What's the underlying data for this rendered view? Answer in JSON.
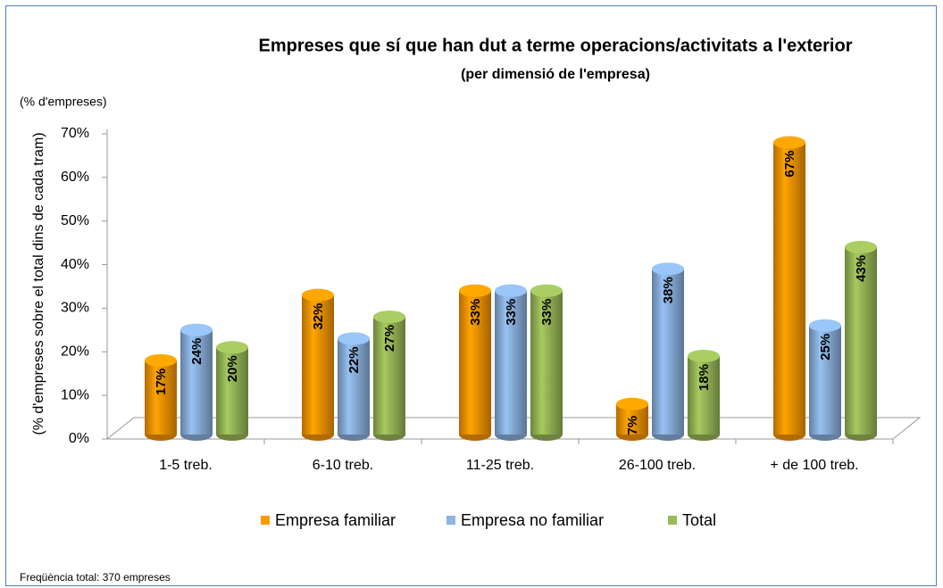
{
  "chart_data": {
    "type": "bar",
    "title": "Empreses que sí que han dut a terme operacions/activitats a l'exterior",
    "subtitle": "(per dimensió de l'empresa)",
    "unit_label": "(% d'empreses)",
    "y_label": "(% d'empreses sobre el total dins de cada tram)",
    "footnote": "Freqüència total: 370 empreses",
    "categories": [
      "1-5 treb.",
      "6-10 treb.",
      "11-25 treb.",
      "26-100 treb.",
      "+ de 100 treb."
    ],
    "series": [
      {
        "name": "Empresa familiar",
        "color": "#ff9900",
        "values": [
          17,
          32,
          33,
          7,
          67
        ],
        "value_labels": [
          "17%",
          "32%",
          "33%",
          "7%",
          "67%"
        ]
      },
      {
        "name": "Empresa no familiar",
        "color": "#8db4e2",
        "values": [
          24,
          22,
          33,
          38,
          25
        ],
        "value_labels": [
          "24%",
          "22%",
          "33%",
          "38%",
          "25%"
        ]
      },
      {
        "name": "Total",
        "color": "#9bbb59",
        "values": [
          20,
          27,
          33,
          18,
          43
        ],
        "value_labels": [
          "20%",
          "27%",
          "33%",
          "18%",
          "43%"
        ]
      }
    ],
    "ylim": [
      0,
      70
    ],
    "yticks": [
      {
        "value": 0,
        "label": "0%"
      },
      {
        "value": 10,
        "label": "10%"
      },
      {
        "value": 20,
        "label": "20%"
      },
      {
        "value": 30,
        "label": "30%"
      },
      {
        "value": 40,
        "label": "40%"
      },
      {
        "value": 50,
        "label": "50%"
      },
      {
        "value": 60,
        "label": "60%"
      },
      {
        "value": 70,
        "label": "70%"
      }
    ],
    "legend": "bottom"
  }
}
